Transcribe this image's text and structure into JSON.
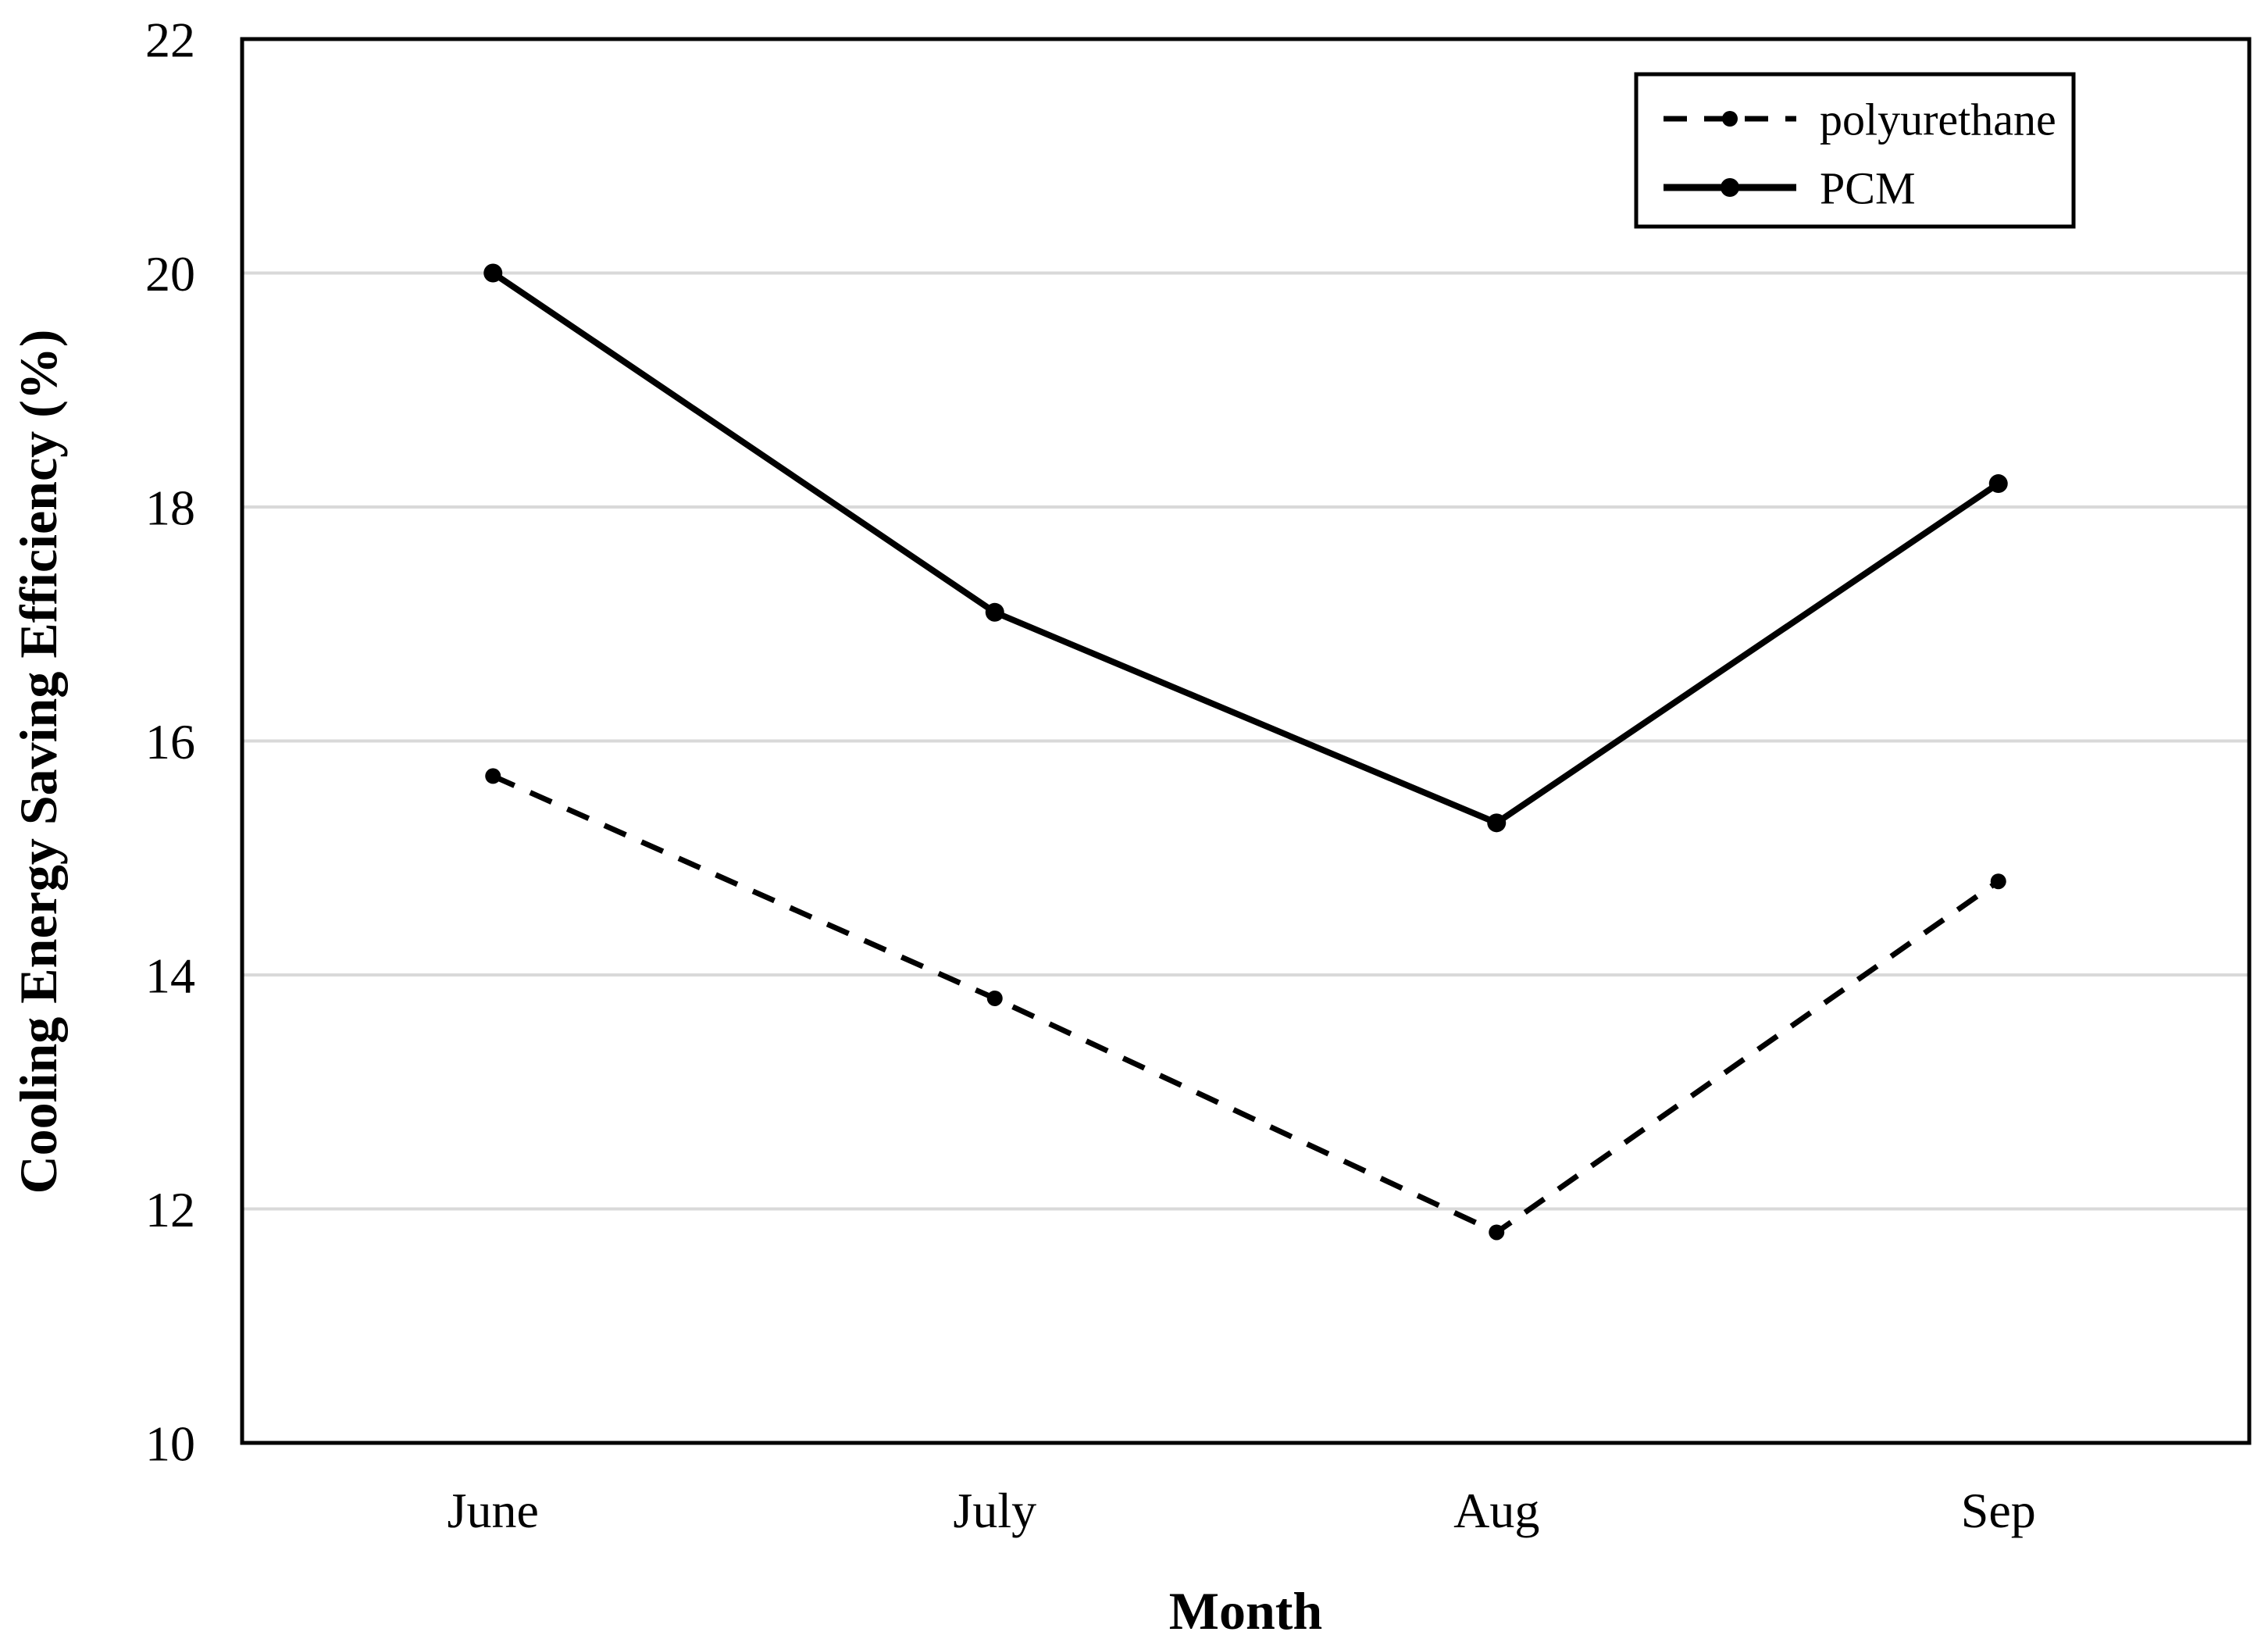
{
  "figure": {
    "background_color": "#ffffff",
    "text_color": "#000000",
    "gridline_color": "#d9d9d9",
    "frame_color": "#000000"
  },
  "chart_data": {
    "type": "line",
    "title": "",
    "categories": [
      "June",
      "July",
      "Aug",
      "Sep"
    ],
    "series": [
      {
        "name": "polyurethane",
        "values": [
          15.7,
          13.8,
          11.8,
          14.8
        ],
        "color": "#000000",
        "line_style": "dashed",
        "marker": "circle"
      },
      {
        "name": "PCM",
        "values": [
          20.0,
          17.1,
          15.3,
          18.2
        ],
        "color": "#000000",
        "line_style": "solid",
        "marker": "circle"
      }
    ],
    "xlabel": "Month",
    "ylabel": "Cooling Energy Saving Efficiency (%)",
    "ylim": [
      10,
      22
    ],
    "yticks": [
      10,
      12,
      14,
      16,
      18,
      20,
      22
    ],
    "grid": "horizontal-only",
    "legend": {
      "position": "top-right",
      "entries": [
        "polyurethane",
        "PCM"
      ]
    }
  }
}
